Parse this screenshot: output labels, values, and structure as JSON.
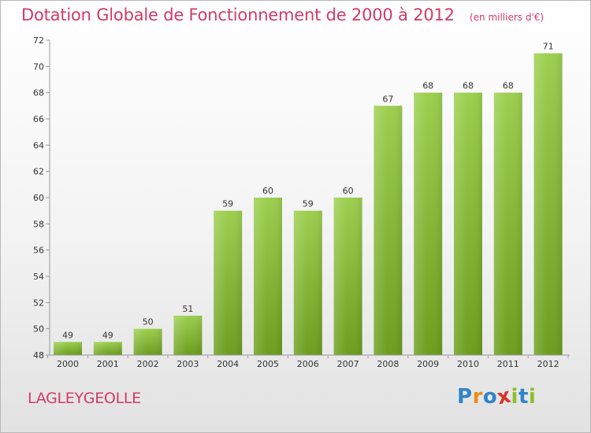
{
  "chart_data": {
    "type": "bar",
    "title": "Dotation Globale de Fonctionnement de 2000 à 2012",
    "unit": "(en milliers d'€)",
    "categories": [
      "2000",
      "2001",
      "2002",
      "2003",
      "2004",
      "2005",
      "2006",
      "2007",
      "2008",
      "2009",
      "2010",
      "2011",
      "2012"
    ],
    "values": [
      49,
      49,
      50,
      51,
      59,
      60,
      59,
      60,
      67,
      68,
      68,
      68,
      71
    ],
    "data_labels": [
      "49",
      "49",
      "50",
      "51",
      "59",
      "60",
      "59",
      "60",
      "67",
      "68",
      "68",
      "68",
      "71"
    ],
    "ylim": [
      48,
      72
    ],
    "yticks": [
      "48",
      "50",
      "52",
      "54",
      "56",
      "58",
      "60",
      "62",
      "64",
      "66",
      "68",
      "70",
      "72"
    ],
    "grid": false,
    "bar_color_top": "#9ccf4f",
    "bar_color_bottom": "#6b9d1d"
  },
  "commune": "LAGLEYGEOLLE",
  "logo": {
    "text": "Proxiti",
    "letters": [
      "P",
      "r",
      "o",
      "x",
      "i",
      "t",
      "i"
    ],
    "colors": [
      "#2e84c8",
      "#f08a1c",
      "#2e84c8",
      "#d8342c",
      "#8dbf2a",
      "#2e84c8",
      "#8dbf2a"
    ]
  },
  "colors": {
    "accent": "#d23a67",
    "axis": "#9a9a9a",
    "text": "#333333"
  }
}
